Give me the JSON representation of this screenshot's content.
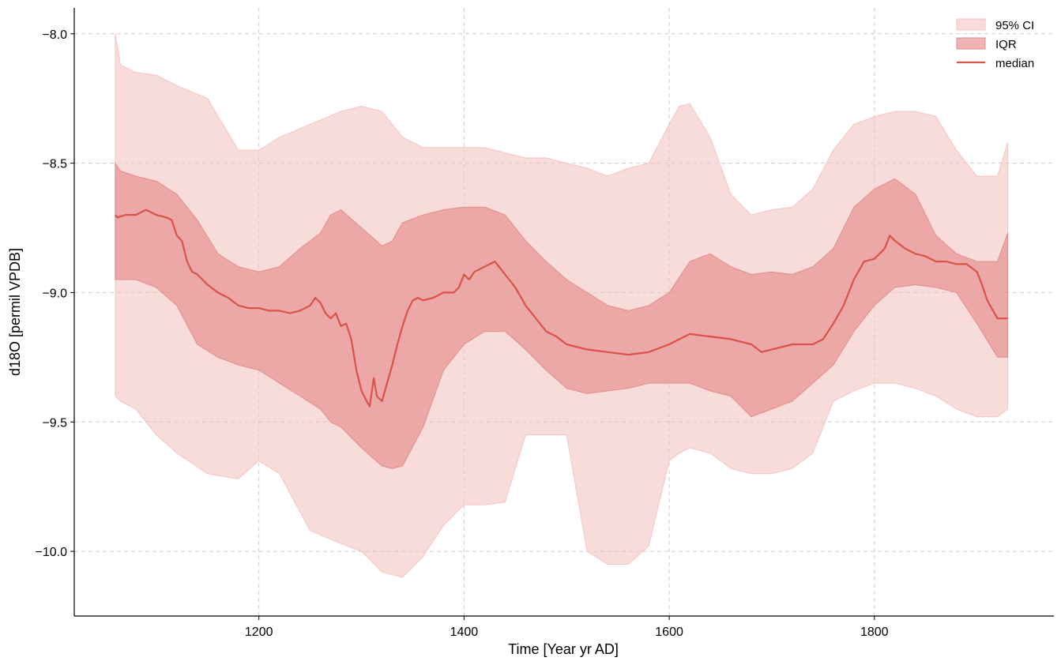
{
  "chart_data": {
    "type": "area",
    "title": "",
    "xlabel": "Time [Year yr AD]",
    "ylabel": "d18O [permil VPDB]",
    "xlim": [
      1020,
      1975
    ],
    "ylim": [
      -10.25,
      -7.9
    ],
    "xticks": [
      1200,
      1400,
      1600,
      1800
    ],
    "xtick_labels": [
      "1200",
      "1400",
      "1600",
      "1800"
    ],
    "yticks": [
      -8.0,
      -8.5,
      -9.0,
      -9.5,
      -10.0
    ],
    "ytick_labels": [
      "−8.0",
      "−8.5",
      "−9.0",
      "−9.5",
      "−10.0"
    ],
    "grid": true,
    "legend_position": "top-right",
    "colors": {
      "ci": "#f4c4c2",
      "iqr": "#e38c8a",
      "median": "#d9534a",
      "grid": "#cccccc"
    },
    "series": [
      {
        "name": "95% CI",
        "kind": "band",
        "x": [
          1060,
          1065,
          1080,
          1100,
          1120,
          1150,
          1180,
          1200,
          1220,
          1250,
          1280,
          1300,
          1320,
          1340,
          1360,
          1380,
          1400,
          1420,
          1440,
          1460,
          1480,
          1500,
          1520,
          1540,
          1560,
          1580,
          1600,
          1610,
          1620,
          1640,
          1660,
          1680,
          1700,
          1720,
          1740,
          1760,
          1780,
          1800,
          1820,
          1840,
          1860,
          1880,
          1900,
          1920,
          1930
        ],
        "upper": [
          -8.0,
          -8.12,
          -8.15,
          -8.16,
          -8.2,
          -8.25,
          -8.45,
          -8.45,
          -8.4,
          -8.35,
          -8.3,
          -8.28,
          -8.3,
          -8.4,
          -8.44,
          -8.44,
          -8.44,
          -8.44,
          -8.46,
          -8.48,
          -8.48,
          -8.5,
          -8.52,
          -8.55,
          -8.52,
          -8.5,
          -8.35,
          -8.28,
          -8.27,
          -8.4,
          -8.62,
          -8.7,
          -8.68,
          -8.67,
          -8.6,
          -8.45,
          -8.35,
          -8.32,
          -8.3,
          -8.3,
          -8.32,
          -8.45,
          -8.55,
          -8.55,
          -8.42
        ],
        "lower": [
          -9.4,
          -9.42,
          -9.45,
          -9.55,
          -9.62,
          -9.7,
          -9.72,
          -9.65,
          -9.7,
          -9.92,
          -9.97,
          -10.0,
          -10.08,
          -10.1,
          -10.02,
          -9.9,
          -9.82,
          -9.82,
          -9.81,
          -9.55,
          -9.55,
          -9.55,
          -10.0,
          -10.05,
          -10.05,
          -9.98,
          -9.65,
          -9.62,
          -9.6,
          -9.62,
          -9.68,
          -9.7,
          -9.7,
          -9.68,
          -9.62,
          -9.42,
          -9.38,
          -9.35,
          -9.35,
          -9.37,
          -9.4,
          -9.45,
          -9.48,
          -9.48,
          -9.45
        ]
      },
      {
        "name": "IQR",
        "kind": "band",
        "x": [
          1060,
          1065,
          1080,
          1100,
          1120,
          1140,
          1160,
          1180,
          1200,
          1220,
          1240,
          1260,
          1270,
          1280,
          1300,
          1320,
          1330,
          1340,
          1360,
          1380,
          1400,
          1420,
          1440,
          1460,
          1480,
          1500,
          1520,
          1540,
          1560,
          1580,
          1600,
          1620,
          1640,
          1660,
          1680,
          1700,
          1720,
          1740,
          1760,
          1780,
          1800,
          1820,
          1840,
          1860,
          1880,
          1900,
          1920,
          1930
        ],
        "upper": [
          -8.5,
          -8.53,
          -8.55,
          -8.57,
          -8.62,
          -8.72,
          -8.85,
          -8.9,
          -8.92,
          -8.9,
          -8.83,
          -8.77,
          -8.7,
          -8.68,
          -8.75,
          -8.82,
          -8.8,
          -8.73,
          -8.7,
          -8.68,
          -8.67,
          -8.67,
          -8.7,
          -8.8,
          -8.88,
          -8.95,
          -9.0,
          -9.05,
          -9.07,
          -9.05,
          -9.0,
          -8.88,
          -8.85,
          -8.9,
          -8.93,
          -8.92,
          -8.93,
          -8.9,
          -8.83,
          -8.67,
          -8.6,
          -8.56,
          -8.62,
          -8.78,
          -8.85,
          -8.88,
          -8.88,
          -8.77
        ],
        "lower": [
          -8.95,
          -8.95,
          -8.95,
          -8.98,
          -9.05,
          -9.2,
          -9.25,
          -9.28,
          -9.3,
          -9.35,
          -9.4,
          -9.45,
          -9.5,
          -9.52,
          -9.6,
          -9.67,
          -9.68,
          -9.67,
          -9.52,
          -9.3,
          -9.2,
          -9.15,
          -9.15,
          -9.22,
          -9.3,
          -9.37,
          -9.39,
          -9.38,
          -9.37,
          -9.35,
          -9.35,
          -9.35,
          -9.38,
          -9.4,
          -9.48,
          -9.45,
          -9.42,
          -9.35,
          -9.28,
          -9.15,
          -9.05,
          -8.98,
          -8.97,
          -8.98,
          -9.0,
          -9.12,
          -9.25,
          -9.25
        ]
      },
      {
        "name": "median",
        "kind": "line",
        "x": [
          1060,
          1062,
          1070,
          1080,
          1090,
          1100,
          1110,
          1115,
          1120,
          1125,
          1130,
          1135,
          1140,
          1150,
          1160,
          1170,
          1180,
          1190,
          1200,
          1210,
          1220,
          1230,
          1240,
          1250,
          1255,
          1260,
          1265,
          1270,
          1275,
          1280,
          1285,
          1290,
          1295,
          1300,
          1305,
          1308,
          1312,
          1315,
          1320,
          1325,
          1330,
          1335,
          1340,
          1345,
          1350,
          1355,
          1360,
          1370,
          1380,
          1390,
          1395,
          1400,
          1405,
          1410,
          1420,
          1430,
          1440,
          1450,
          1460,
          1470,
          1480,
          1490,
          1500,
          1520,
          1540,
          1560,
          1580,
          1600,
          1610,
          1620,
          1640,
          1660,
          1680,
          1690,
          1700,
          1720,
          1740,
          1750,
          1760,
          1770,
          1780,
          1790,
          1800,
          1810,
          1815,
          1820,
          1830,
          1840,
          1850,
          1860,
          1870,
          1880,
          1890,
          1900,
          1905,
          1910,
          1920,
          1930
        ],
        "y": [
          -8.7,
          -8.71,
          -8.7,
          -8.7,
          -8.68,
          -8.7,
          -8.71,
          -8.72,
          -8.78,
          -8.8,
          -8.88,
          -8.92,
          -8.93,
          -8.97,
          -9.0,
          -9.02,
          -9.05,
          -9.06,
          -9.06,
          -9.07,
          -9.07,
          -9.08,
          -9.07,
          -9.05,
          -9.02,
          -9.04,
          -9.08,
          -9.1,
          -9.08,
          -9.13,
          -9.12,
          -9.18,
          -9.3,
          -9.38,
          -9.42,
          -9.44,
          -9.33,
          -9.4,
          -9.42,
          -9.35,
          -9.28,
          -9.2,
          -9.13,
          -9.07,
          -9.03,
          -9.02,
          -9.03,
          -9.02,
          -9.0,
          -9.0,
          -8.98,
          -8.93,
          -8.95,
          -8.92,
          -8.9,
          -8.88,
          -8.93,
          -8.98,
          -9.05,
          -9.1,
          -9.15,
          -9.17,
          -9.2,
          -9.22,
          -9.23,
          -9.24,
          -9.23,
          -9.2,
          -9.18,
          -9.16,
          -9.17,
          -9.18,
          -9.2,
          -9.23,
          -9.22,
          -9.2,
          -9.2,
          -9.18,
          -9.12,
          -9.05,
          -8.95,
          -8.88,
          -8.87,
          -8.83,
          -8.78,
          -8.8,
          -8.83,
          -8.85,
          -8.86,
          -8.88,
          -8.88,
          -8.89,
          -8.89,
          -8.92,
          -8.97,
          -9.03,
          -9.1,
          -9.1
        ]
      }
    ],
    "legend": [
      {
        "label": "95% CI",
        "kind": "ci"
      },
      {
        "label": "IQR",
        "kind": "iqr"
      },
      {
        "label": "median",
        "kind": "median"
      }
    ]
  }
}
